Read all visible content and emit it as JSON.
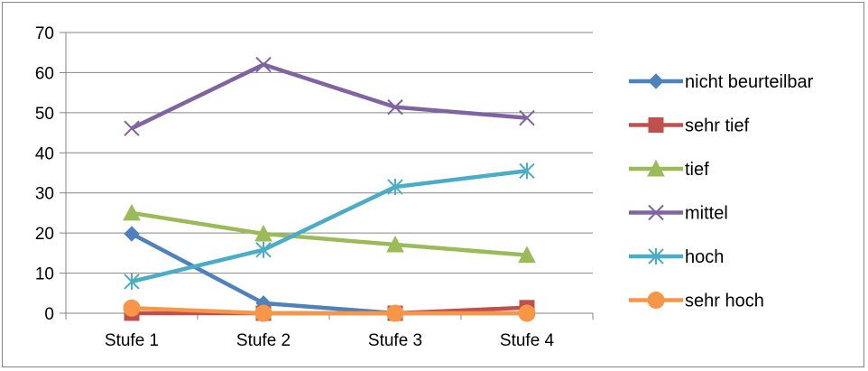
{
  "chart_data": {
    "type": "line",
    "title": "",
    "xlabel": "",
    "ylabel": "",
    "categories": [
      "Stufe 1",
      "Stufe 2",
      "Stufe 3",
      "Stufe 4"
    ],
    "ylim": [
      0,
      70
    ],
    "yticks": [
      0,
      10,
      20,
      30,
      40,
      50,
      60,
      70
    ],
    "grid": "horizontal",
    "legend_position": "right",
    "series": [
      {
        "name": "nicht beurteilbar",
        "values": [
          19.8,
          2.5,
          0,
          0
        ],
        "color": "#4F81BD",
        "marker": "diamond"
      },
      {
        "name": "sehr tief",
        "values": [
          0,
          0,
          0,
          1.4
        ],
        "color": "#C0504D",
        "marker": "square"
      },
      {
        "name": "tief",
        "values": [
          25,
          19.8,
          17.1,
          14.5
        ],
        "color": "#9BBB59",
        "marker": "triangle"
      },
      {
        "name": "mittel",
        "values": [
          46.1,
          62,
          51.4,
          48.7
        ],
        "color": "#8064A2",
        "marker": "x"
      },
      {
        "name": "hoch",
        "values": [
          7.9,
          15.8,
          31.5,
          35.5
        ],
        "color": "#4BACC6",
        "marker": "asterisk"
      },
      {
        "name": "sehr hoch",
        "values": [
          1.3,
          0,
          0,
          0
        ],
        "color": "#F79646",
        "marker": "circle"
      }
    ]
  }
}
